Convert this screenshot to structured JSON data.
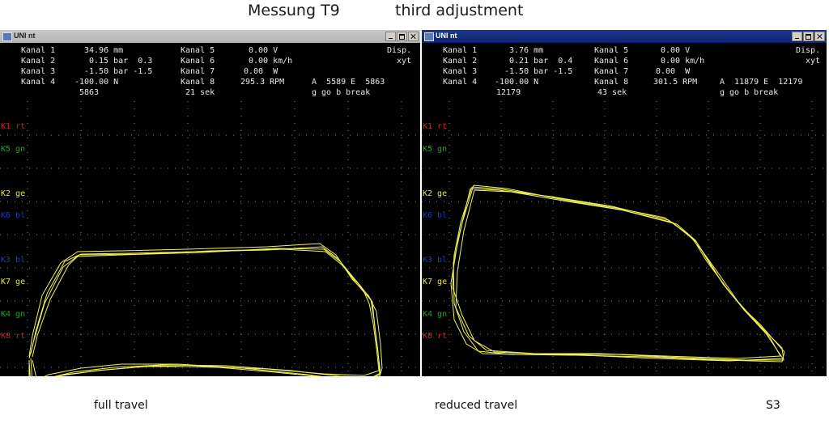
{
  "header": {
    "title": "Messung T9",
    "subtitle": "third adjustment"
  },
  "captions": {
    "left": "full travel",
    "middle": "reduced travel",
    "right": "S3"
  },
  "windows": [
    {
      "title": "UNI nt",
      "rows": [
        [
          "Kanal 1",
          "34.96 mm",
          "Kanal 5",
          "0.00 V",
          "Disp."
        ],
        [
          "Kanal 2",
          "0.15 bar  0.3",
          "Kanal 6",
          "0.00 km/h",
          "xyt"
        ],
        [
          "Kanal 3",
          "-1.50 bar -1.5",
          "Kanal 7",
          "0.00  W",
          ""
        ],
        [
          "Kanal 4",
          "-100.00 N",
          "Kanal 8",
          "295.3 RPM",
          "A  5589 E  5863"
        ]
      ],
      "counter": "5863",
      "seconds": "21 sek",
      "hint": "g go b break",
      "channels": [
        {
          "label": "K1 rt",
          "color": "#c62828"
        },
        {
          "label": "K5 gn",
          "color": "#2e9c2e"
        },
        {
          "label": "K2 ge",
          "color": "#e6e632"
        },
        {
          "label": "K6 bl",
          "color": "#1e3fb4"
        },
        {
          "label": "K3 bl",
          "color": "#1e3fb4"
        },
        {
          "label": "K7 ge",
          "color": "#e6e632"
        },
        {
          "label": "K4 gn",
          "color": "#2e9c2e"
        },
        {
          "label": "K8 rt",
          "color": "#c62828"
        }
      ]
    },
    {
      "title": "UNI nt",
      "rows": [
        [
          "Kanal 1",
          "3.76 mm",
          "Kanal 5",
          "0.00 V",
          "Disp."
        ],
        [
          "Kanal 2",
          "0.21 bar  0.4",
          "Kanal 6",
          "0.00 km/h",
          "xyt"
        ],
        [
          "Kanal 3",
          "-1.50 bar -1.5",
          "Kanal 7",
          "0.00  W",
          ""
        ],
        [
          "Kanal 4",
          "-100.00 N",
          "Kanal 8",
          "301.5 RPM",
          "A  11879 E  12179"
        ]
      ],
      "counter": "12179",
      "seconds": "43 sek",
      "hint": "g go b break",
      "channels": [
        {
          "label": "K1 rt",
          "color": "#c62828"
        },
        {
          "label": "K5 gn",
          "color": "#2e9c2e"
        },
        {
          "label": "K2 ge",
          "color": "#e6e632"
        },
        {
          "label": "K6 bl",
          "color": "#1e3fb4"
        },
        {
          "label": "K3 bl",
          "color": "#1e3fb4"
        },
        {
          "label": "K7 ge",
          "color": "#e6e632"
        },
        {
          "label": "K4 gn",
          "color": "#2e9c2e"
        },
        {
          "label": "K8 rt",
          "color": "#c62828"
        }
      ]
    }
  ],
  "colors": {
    "trace": "#f2f25a",
    "grid": "#8a8a8a"
  }
}
